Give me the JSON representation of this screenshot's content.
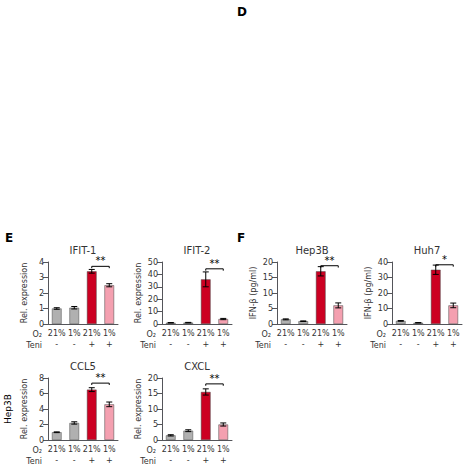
{
  "chart_data": [
    {
      "type": "bar",
      "title": "IFIT-1",
      "ylabel": "Rel. expression",
      "categories": [
        "21%",
        "1%",
        "21%",
        "1%"
      ],
      "values": [
        1.0,
        1.05,
        3.4,
        2.5
      ],
      "errors": [
        0.05,
        0.08,
        0.12,
        0.1
      ],
      "colors": [
        "#b0b0b0",
        "#b0b0b0",
        "#cc0022",
        "#f4a0b0"
      ],
      "ylim": [
        0,
        4
      ],
      "yticks": [
        0,
        1,
        2,
        3,
        4
      ],
      "grid": false,
      "annotations": [
        {
          "text": "O₂"
        },
        {
          "text": "Teni",
          "labels": [
            "-",
            "-",
            "+",
            "+"
          ]
        },
        {
          "text": "**",
          "x": [
            2,
            3
          ],
          "y": 3.6
        }
      ]
    },
    {
      "type": "bar",
      "title": "IFIT-2",
      "ylabel": "Rel. expression",
      "categories": [
        "21%",
        "1%",
        "21%",
        "1%"
      ],
      "values": [
        1.0,
        1.1,
        36.0,
        4.0
      ],
      "errors": [
        0.15,
        0.2,
        6.0,
        0.5
      ],
      "colors": [
        "#b0b0b0",
        "#b0b0b0",
        "#cc0022",
        "#f4a0b0"
      ],
      "ylim": [
        0,
        50
      ],
      "yticks": [
        0,
        10,
        20,
        30,
        40,
        50
      ],
      "grid": false,
      "annotations": [
        {
          "text": "O₂"
        },
        {
          "text": "Teni",
          "labels": [
            "-",
            "-",
            "+",
            "+"
          ]
        },
        {
          "text": "**",
          "x": [
            2,
            3
          ],
          "y": 43
        }
      ]
    },
    {
      "type": "bar",
      "title": "Hep3B",
      "ylabel": "IFN-β (pg/ml)",
      "categories": [
        "21%",
        "1%",
        "21%",
        "1%"
      ],
      "values": [
        1.5,
        0.9,
        17.0,
        6.0
      ],
      "errors": [
        0.15,
        0.1,
        1.5,
        0.8
      ],
      "colors": [
        "#b0b0b0",
        "#b0b0b0",
        "#cc0022",
        "#f4a0b0"
      ],
      "ylim": [
        0,
        20
      ],
      "yticks": [
        0,
        5,
        10,
        15,
        20
      ],
      "grid": false,
      "annotations": [
        {
          "text": "O₂"
        },
        {
          "text": "Teni",
          "labels": [
            "-",
            "-",
            "+",
            "+"
          ]
        },
        {
          "text": "**",
          "x": [
            2,
            3
          ],
          "y": 18.2
        }
      ]
    },
    {
      "type": "bar",
      "title": "Huh7",
      "ylabel": "IFN-β (pg/ml)",
      "categories": [
        "21%",
        "1%",
        "21%",
        "1%"
      ],
      "values": [
        2.0,
        0.8,
        35.0,
        12.0
      ],
      "errors": [
        0.2,
        0.1,
        3.0,
        1.5
      ],
      "colors": [
        "#b0b0b0",
        "#b0b0b0",
        "#cc0022",
        "#f4a0b0"
      ],
      "ylim": [
        0,
        40
      ],
      "yticks": [
        0,
        10,
        20,
        30,
        40
      ],
      "grid": false,
      "annotations": [
        {
          "text": "O₂"
        },
        {
          "text": "Teni",
          "labels": [
            "-",
            "-",
            "+",
            "+"
          ]
        },
        {
          "text": "*",
          "x": [
            2,
            3
          ],
          "y": 37.0
        }
      ]
    },
    {
      "type": "bar",
      "title": "CCL5",
      "ylabel": "Rel. expression",
      "categories": [
        "21%",
        "1%",
        "21%",
        "1%"
      ],
      "values": [
        1.0,
        2.2,
        6.5,
        4.6
      ],
      "errors": [
        0.05,
        0.15,
        0.25,
        0.3
      ],
      "colors": [
        "#b0b0b0",
        "#b0b0b0",
        "#cc0022",
        "#f4a0b0"
      ],
      "ylim": [
        0,
        8
      ],
      "yticks": [
        0,
        2,
        4,
        6,
        8
      ],
      "grid": false,
      "annotations": [
        {
          "text": "O₂"
        },
        {
          "text": "Teni",
          "labels": [
            "-",
            "-",
            "+",
            "+"
          ]
        },
        {
          "text": "**",
          "x": [
            2,
            3
          ],
          "y": 7.1
        }
      ]
    },
    {
      "type": "bar",
      "title": "CXCL",
      "ylabel": "Rel. expression",
      "categories": [
        "21%",
        "1%",
        "21%",
        "1%"
      ],
      "values": [
        1.5,
        3.0,
        15.5,
        5.0
      ],
      "errors": [
        0.2,
        0.3,
        1.0,
        0.5
      ],
      "colors": [
        "#b0b0b0",
        "#b0b0b0",
        "#cc0022",
        "#f4a0b0"
      ],
      "ylim": [
        0,
        20
      ],
      "yticks": [
        0,
        5,
        10,
        15,
        20
      ],
      "grid": false,
      "annotations": [
        {
          "text": "O₂"
        },
        {
          "text": "Teni",
          "labels": [
            "-",
            "-",
            "+",
            "+"
          ]
        },
        {
          "text": "**",
          "x": [
            2,
            3
          ],
          "y": 17.5
        }
      ]
    }
  ],
  "annotations": [
    "D",
    "E",
    "F",
    "Hep3B"
  ]
}
